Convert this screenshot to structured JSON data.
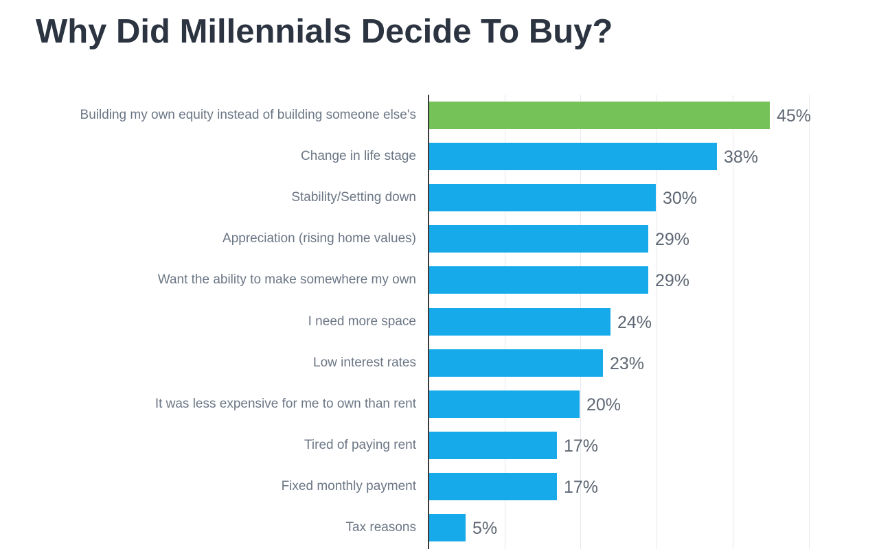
{
  "title": "Why Did Millennials Decide To Buy?",
  "colors": {
    "highlight": "#74c258",
    "bar": "#16aaea",
    "title": "#2b3440",
    "label": "#6b7685",
    "value": "#5e6773"
  },
  "chart_data": {
    "type": "bar",
    "orientation": "horizontal",
    "title": "Why Did Millennials Decide To Buy?",
    "xlabel": "",
    "ylabel": "",
    "xlim": [
      0,
      50
    ],
    "grid": true,
    "grid_step": 10,
    "legend": null,
    "value_suffix": "%",
    "categories": [
      "Building my own equity instead of building someone else's",
      "Change in life stage",
      "Stability/Setting down",
      "Appreciation (rising home values)",
      "Want the ability to make somewhere my own",
      "I need more space",
      "Low interest rates",
      "It was less expensive for me to own than rent",
      "Tired of paying rent",
      "Fixed monthly payment",
      "Tax reasons"
    ],
    "values": [
      45,
      38,
      30,
      29,
      29,
      24,
      23,
      20,
      17,
      17,
      5
    ],
    "value_labels": [
      "45%",
      "38%",
      "30%",
      "29%",
      "29%",
      "24%",
      "23%",
      "20%",
      "17%",
      "17%",
      "5%"
    ],
    "highlighted_index": 0
  }
}
